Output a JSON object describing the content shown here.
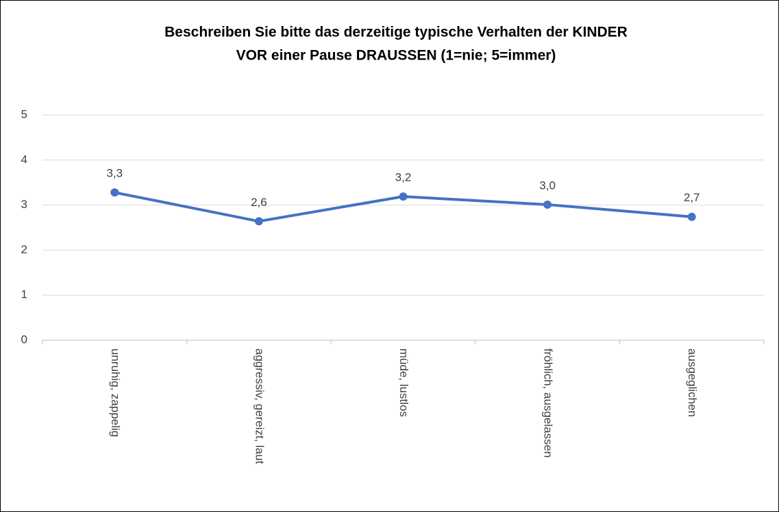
{
  "chart_data": {
    "type": "line",
    "title": [
      "Beschreiben Sie bitte das derzeitige typische Verhalten der KINDER",
      "VOR einer Pause DRAUSSEN (1=nie; 5=immer)"
    ],
    "categories": [
      "unruhig, zappelig",
      "aggressiv, gereizt, laut",
      "müde, lustlos",
      "fröhlich, ausgelassen",
      "ausgeglichen"
    ],
    "values": [
      3.28,
      2.64,
      3.19,
      3.01,
      2.74
    ],
    "value_labels": [
      "3,3",
      "2,6",
      "3,2",
      "3,0",
      "2,7"
    ],
    "color": "#4472c4",
    "ylim": [
      0,
      5
    ],
    "yticks": [
      0,
      1,
      2,
      3,
      4,
      5
    ],
    "grid": true
  }
}
